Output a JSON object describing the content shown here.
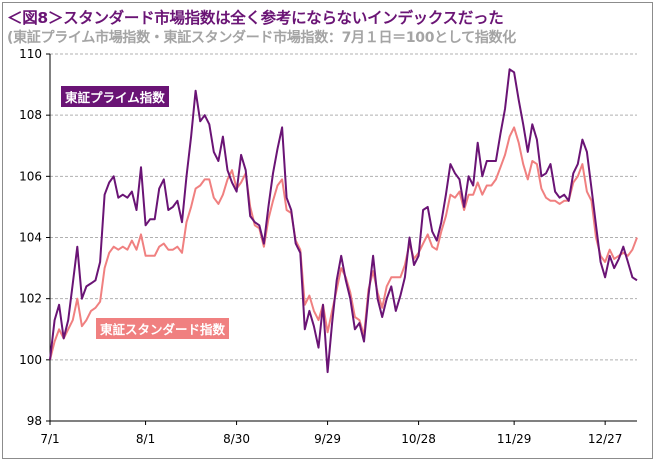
{
  "title": "＜図8＞スタンダード市場指数は全く参考にならないインデックスだった",
  "subtitle": "(東証プライム市場指数・東証スタンダード市場指数：7月１日＝100として指数化",
  "colors": {
    "prime": "#6a1475",
    "standard": "#f08080",
    "grid": "#b0b0b0"
  },
  "chart_data": {
    "type": "line",
    "ylim": [
      98,
      110
    ],
    "yticks": [
      98,
      100,
      102,
      104,
      106,
      108,
      110
    ],
    "grid": "horizontal dashed",
    "x_tick_labels": [
      {
        "label": "7/1",
        "index": 0
      },
      {
        "label": "8/1",
        "index": 21
      },
      {
        "label": "8/30",
        "index": 41
      },
      {
        "label": "9/29",
        "index": 61
      },
      {
        "label": "10/28",
        "index": 81
      },
      {
        "label": "11/29",
        "index": 102
      },
      {
        "label": "12/27",
        "index": 122
      }
    ],
    "series": [
      {
        "name": "東証プライム指数",
        "color": "#6a1475",
        "values": [
          100.0,
          101.3,
          101.8,
          100.7,
          101.3,
          102.5,
          103.7,
          102.0,
          102.4,
          102.5,
          102.6,
          103.2,
          105.4,
          105.8,
          106.0,
          105.3,
          105.4,
          105.3,
          105.5,
          104.9,
          106.3,
          104.4,
          104.6,
          104.6,
          105.6,
          105.9,
          104.9,
          105.0,
          105.2,
          104.5,
          106.0,
          107.3,
          108.8,
          107.8,
          108.0,
          107.7,
          106.8,
          106.5,
          107.3,
          106.2,
          105.8,
          105.5,
          106.7,
          106.2,
          104.7,
          104.5,
          104.4,
          103.8,
          105.0,
          106.1,
          106.9,
          107.6,
          105.3,
          104.9,
          103.8,
          103.5,
          101.0,
          101.6,
          101.1,
          100.4,
          101.8,
          99.6,
          101.2,
          102.6,
          103.4,
          102.6,
          102.0,
          101.0,
          101.2,
          100.6,
          102.1,
          103.4,
          102.0,
          101.4,
          102.0,
          102.4,
          101.6,
          102.1,
          102.7,
          104.0,
          103.1,
          103.4,
          104.9,
          105.0,
          104.2,
          103.9,
          104.5,
          105.4,
          106.4,
          106.1,
          105.9,
          105.0,
          106.0,
          105.7,
          107.1,
          106.0,
          106.5,
          106.5,
          106.5,
          107.4,
          108.2,
          109.5,
          109.4,
          108.5,
          107.7,
          106.8,
          107.7,
          107.2,
          106.0,
          106.1,
          106.4,
          105.5,
          105.3,
          105.4,
          105.2,
          106.1,
          106.4,
          107.2,
          106.8,
          105.6,
          104.4,
          103.2,
          102.7,
          103.4,
          103.0,
          103.3,
          103.7,
          103.2,
          102.7,
          102.6
        ]
      },
      {
        "name": "東証スタンダード指数",
        "color": "#f08080",
        "values": [
          100.0,
          100.6,
          101.0,
          100.7,
          101.0,
          101.3,
          102.0,
          101.1,
          101.3,
          101.6,
          101.7,
          101.9,
          103.0,
          103.5,
          103.7,
          103.6,
          103.7,
          103.6,
          103.9,
          103.6,
          104.1,
          103.4,
          103.4,
          103.4,
          103.7,
          103.8,
          103.6,
          103.6,
          103.7,
          103.5,
          104.5,
          105.0,
          105.6,
          105.7,
          105.9,
          105.9,
          105.3,
          105.1,
          105.4,
          105.9,
          106.2,
          105.6,
          105.8,
          106.1,
          105.0,
          104.4,
          104.3,
          103.7,
          104.6,
          105.2,
          105.7,
          105.9,
          104.9,
          104.8,
          103.9,
          103.6,
          101.8,
          102.1,
          101.6,
          101.3,
          101.8,
          100.9,
          101.6,
          102.3,
          103.0,
          102.7,
          102.2,
          101.4,
          101.3,
          100.8,
          102.3,
          102.9,
          102.2,
          101.7,
          102.4,
          102.7,
          102.7,
          102.7,
          103.1,
          103.8,
          103.3,
          103.5,
          103.8,
          104.1,
          103.7,
          103.6,
          104.2,
          104.7,
          105.4,
          105.3,
          105.5,
          104.9,
          105.4,
          105.4,
          105.8,
          105.4,
          105.7,
          105.7,
          105.9,
          106.3,
          106.7,
          107.3,
          107.6,
          107.1,
          106.4,
          105.9,
          106.5,
          106.4,
          105.6,
          105.3,
          105.2,
          105.2,
          105.1,
          105.2,
          105.2,
          105.8,
          106.0,
          106.4,
          105.5,
          105.2,
          104.0,
          103.4,
          103.2,
          103.6,
          103.3,
          103.4,
          103.5,
          103.4,
          103.6,
          104.0
        ]
      }
    ]
  }
}
